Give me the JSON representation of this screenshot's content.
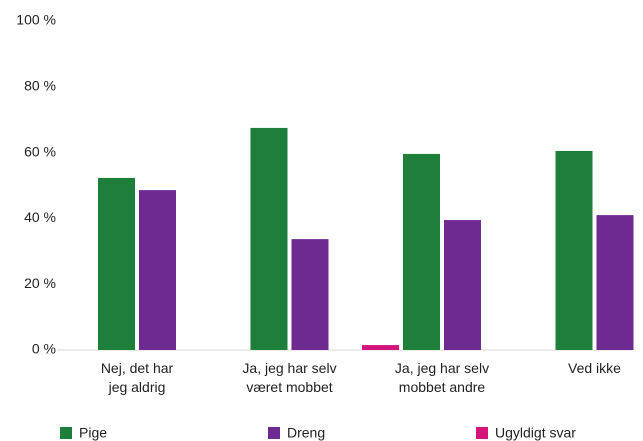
{
  "chart_data": {
    "type": "bar",
    "categories": [
      "Nej, det har\njeg aldrig",
      "Ja, jeg har selv\nværet mobbet",
      "Ja, jeg har selv\nmobbet andre",
      "Ved ikke"
    ],
    "series": [
      {
        "name": "Pige",
        "color": "#1e7f3a",
        "values": [
          52.3,
          67.5,
          59.6,
          60.5
        ]
      },
      {
        "name": "Dreng",
        "color": "#6f2a91",
        "values": [
          48.6,
          33.7,
          39.5,
          41
        ]
      },
      {
        "name": "Ugyldigt svar",
        "color": "#d4147a",
        "values": [
          0,
          0,
          1.5,
          0
        ]
      }
    ],
    "ylim": [
      0,
      100
    ],
    "yticks": [
      {
        "value": 0,
        "label": "0 %"
      },
      {
        "value": 20,
        "label": "20 %"
      },
      {
        "value": 40,
        "label": "40 %"
      },
      {
        "value": 60,
        "label": "60 %"
      },
      {
        "value": 80,
        "label": "80 %"
      },
      {
        "value": 100,
        "label": "100 %"
      }
    ],
    "grid": false
  }
}
